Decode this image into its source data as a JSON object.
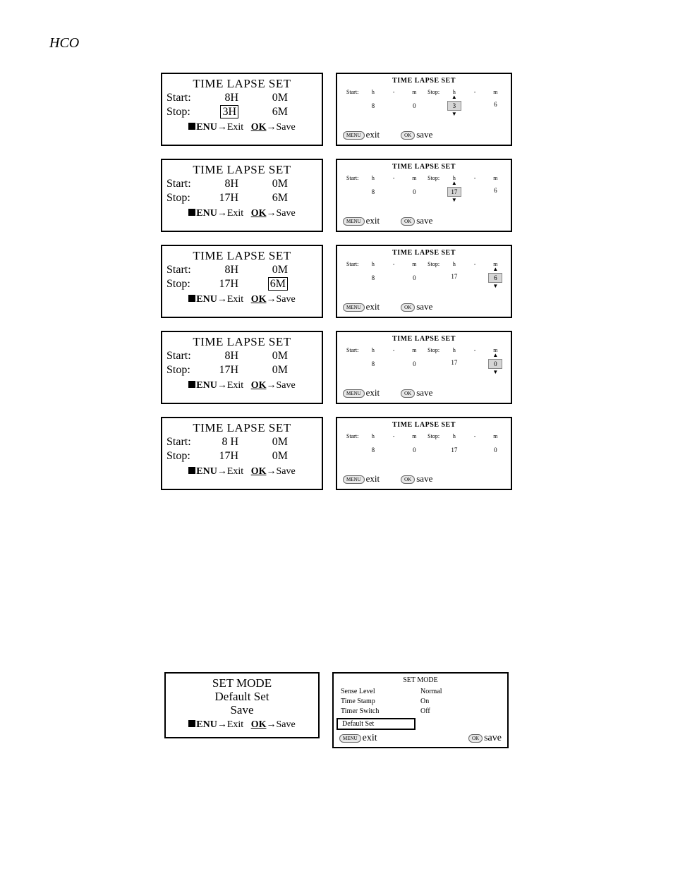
{
  "header": "HCO",
  "panels": [
    {
      "big": {
        "title": "TIME LAPSE SET",
        "start_h": "8H",
        "start_m": "0M",
        "stop_h": "3H",
        "stop_m": "6M",
        "highlight": "stop_h",
        "menu": "ENU",
        "exit": "Exit",
        "ok": "OK",
        "save": "Save"
      },
      "sm": {
        "title": "TIME LAPSE SET",
        "start_lab": "Start:",
        "stop_lab": "Stop:",
        "h": "h",
        "dash": "-",
        "m": "m",
        "sv_h": "8",
        "sv_m": "0",
        "tv_h": "3",
        "tv_m": "6",
        "sel": "tv_h",
        "menu": "MENU",
        "exit": "exit",
        "ok": "OK",
        "save": "save"
      }
    },
    {
      "big": {
        "title": "TIME LAPSE SET",
        "start_h": "8H",
        "start_m": "0M",
        "stop_h": "17H",
        "stop_m": "6M",
        "highlight": "",
        "menu": "ENU",
        "exit": "Exit",
        "ok": "OK",
        "save": "Save"
      },
      "sm": {
        "title": "TIME LAPSE SET",
        "start_lab": "Start:",
        "stop_lab": "Stop:",
        "h": "h",
        "dash": "-",
        "m": "m",
        "sv_h": "8",
        "sv_m": "0",
        "tv_h": "17",
        "tv_m": "6",
        "sel": "tv_h",
        "menu": "MENU",
        "exit": "exit",
        "ok": "OK",
        "save": "save"
      }
    },
    {
      "big": {
        "title": "TIME LAPSE SET",
        "start_h": "8H",
        "start_m": "0M",
        "stop_h": "17H",
        "stop_m": "6M",
        "highlight": "stop_m",
        "menu": "ENU",
        "exit": "Exit",
        "ok": "OK",
        "save": "Save"
      },
      "sm": {
        "title": "TIME LAPSE SET",
        "start_lab": "Start:",
        "stop_lab": "Stop:",
        "h": "h",
        "dash": "-",
        "m": "m",
        "sv_h": "8",
        "sv_m": "0",
        "tv_h": "17",
        "tv_m": "6",
        "sel": "tv_m",
        "menu": "MENU",
        "exit": "exit",
        "ok": "OK",
        "save": "save"
      }
    },
    {
      "big": {
        "title": "TIME LAPSE SET",
        "start_h": "8H",
        "start_m": "0M",
        "stop_h": "17H",
        "stop_m": "0M",
        "highlight": "",
        "menu": "ENU",
        "exit": "Exit",
        "ok": "OK",
        "save": "Save"
      },
      "sm": {
        "title": "TIME LAPSE SET",
        "start_lab": "Start:",
        "stop_lab": "Stop:",
        "h": "h",
        "dash": "-",
        "m": "m",
        "sv_h": "8",
        "sv_m": "0",
        "tv_h": "17",
        "tv_m": "0",
        "sel": "tv_m",
        "menu": "MENU",
        "exit": "exit",
        "ok": "OK",
        "save": "save"
      }
    },
    {
      "big": {
        "title": "TIME LAPSE SET",
        "start_h": "8 H",
        "start_m": "0M",
        "stop_h": "17H",
        "stop_m": "0M",
        "highlight": "",
        "menu": "ENU",
        "exit": "Exit",
        "ok": "OK",
        "save": "Save"
      },
      "sm": {
        "title": "TIME LAPSE SET",
        "start_lab": "Start:",
        "stop_lab": "Stop:",
        "h": "h",
        "dash": "-",
        "m": "m",
        "sv_h": "8",
        "sv_m": "0",
        "tv_h": "17",
        "tv_m": "0",
        "sel": "",
        "menu": "MENU",
        "exit": "exit",
        "ok": "OK",
        "save": "save"
      }
    }
  ],
  "setmode": {
    "big": {
      "title": "SET MODE",
      "l1": "Default Set",
      "l2": "Save",
      "menu": "ENU",
      "exit": "Exit",
      "ok": "OK",
      "save": "Save"
    },
    "sm": {
      "title": "SET MODE",
      "rows": [
        {
          "k": "Sense Level",
          "v": "Normal"
        },
        {
          "k": "Time Stamp",
          "v": "On"
        },
        {
          "k": "Timer Switch",
          "v": "Off"
        }
      ],
      "sel": "Default Set",
      "menu": "MENU",
      "exit": "exit",
      "ok": "OK",
      "save": "save"
    }
  }
}
